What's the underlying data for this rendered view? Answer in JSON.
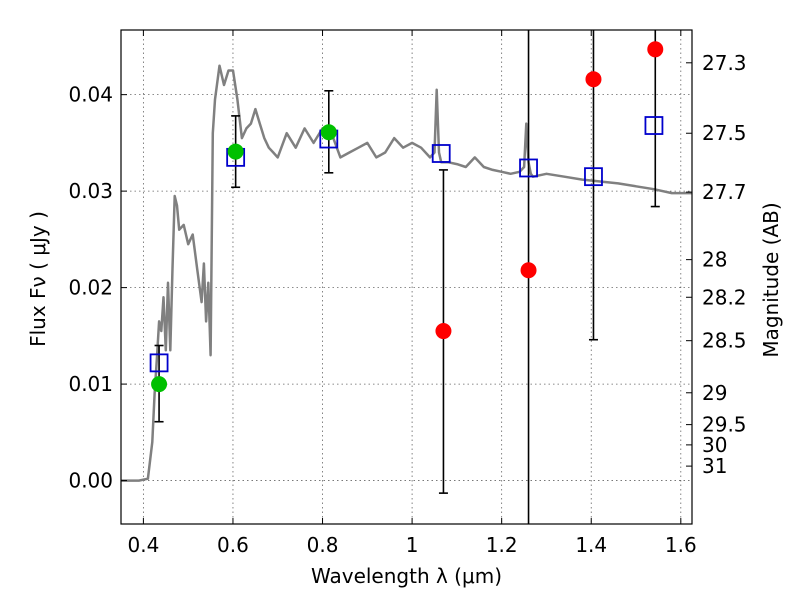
{
  "chart_data": {
    "type": "scatter",
    "title": "",
    "xlabel": "Wavelength  λ (μm)",
    "ylabel": "Flux  Fν  ( μJy )",
    "ylabel_right": "Magnitude (AB)",
    "xlim": [
      0.35,
      1.625
    ],
    "ylim": [
      -0.0045,
      0.0467
    ],
    "grid": true,
    "legend": "none",
    "x_ticks": [
      0.4,
      0.6,
      0.8,
      1.0,
      1.2,
      1.4,
      1.6
    ],
    "x_tick_labels": [
      "0.4",
      "0.6",
      "0.8",
      "1",
      "1.2",
      "1.4",
      "1.6"
    ],
    "y_ticks": [
      0.0,
      0.01,
      0.02,
      0.03,
      0.04
    ],
    "y_tick_labels": [
      "0.00",
      "0.01",
      "0.02",
      "0.03",
      "0.04"
    ],
    "mag_ticks": [
      {
        "flux": 0.0433,
        "label": "27.3"
      },
      {
        "flux": 0.036,
        "label": "27.5"
      },
      {
        "flux": 0.0299,
        "label": "27.7"
      },
      {
        "flux": 0.0229,
        "label": "28"
      },
      {
        "flux": 0.019,
        "label": "28.2"
      },
      {
        "flux": 0.0145,
        "label": "28.5"
      },
      {
        "flux": 0.0091,
        "label": "29"
      },
      {
        "flux": 0.0058,
        "label": "29.5"
      },
      {
        "flux": 0.0037,
        "label": "30"
      },
      {
        "flux": 0.0015,
        "label": "31"
      }
    ],
    "colors": {
      "model": "#808080",
      "detected": "#00c000",
      "undetected": "#ff0000",
      "model_phot": "#0000cc",
      "errorbar": "#000000"
    },
    "series": [
      {
        "kind": "model_spectrum",
        "x": [
          0.35,
          0.37,
          0.39,
          0.41,
          0.42,
          0.425,
          0.43,
          0.435,
          0.44,
          0.445,
          0.45,
          0.455,
          0.46,
          0.465,
          0.47,
          0.475,
          0.48,
          0.49,
          0.5,
          0.51,
          0.52,
          0.53,
          0.535,
          0.54,
          0.545,
          0.55,
          0.555,
          0.56,
          0.57,
          0.58,
          0.59,
          0.6,
          0.61,
          0.62,
          0.63,
          0.64,
          0.65,
          0.66,
          0.67,
          0.68,
          0.69,
          0.7,
          0.72,
          0.74,
          0.76,
          0.78,
          0.8,
          0.82,
          0.84,
          0.86,
          0.88,
          0.9,
          0.92,
          0.94,
          0.96,
          0.98,
          1.0,
          1.02,
          1.04,
          1.05,
          1.055,
          1.06,
          1.065,
          1.08,
          1.1,
          1.12,
          1.14,
          1.16,
          1.18,
          1.2,
          1.22,
          1.24,
          1.25,
          1.255,
          1.26,
          1.265,
          1.27,
          1.3,
          1.34,
          1.38,
          1.42,
          1.46,
          1.5,
          1.54,
          1.58,
          1.625
        ],
        "y": [
          0.0,
          0.0,
          0.0,
          0.0002,
          0.004,
          0.009,
          0.0125,
          0.0165,
          0.0155,
          0.019,
          0.0135,
          0.0205,
          0.0135,
          0.022,
          0.0295,
          0.0285,
          0.026,
          0.0265,
          0.0245,
          0.0255,
          0.022,
          0.0185,
          0.0225,
          0.0165,
          0.0205,
          0.013,
          0.036,
          0.0395,
          0.043,
          0.041,
          0.0425,
          0.0425,
          0.0395,
          0.0355,
          0.0365,
          0.037,
          0.0385,
          0.037,
          0.0355,
          0.0345,
          0.034,
          0.0335,
          0.036,
          0.0345,
          0.0365,
          0.035,
          0.0365,
          0.036,
          0.0335,
          0.034,
          0.0345,
          0.035,
          0.0335,
          0.034,
          0.0355,
          0.0345,
          0.035,
          0.0345,
          0.0335,
          0.034,
          0.0405,
          0.034,
          0.033,
          0.033,
          0.0328,
          0.0325,
          0.0335,
          0.0325,
          0.0322,
          0.032,
          0.0318,
          0.032,
          0.0325,
          0.037,
          0.033,
          0.0318,
          0.0315,
          0.0318,
          0.0315,
          0.0312,
          0.031,
          0.0308,
          0.0305,
          0.0302,
          0.0298,
          0.0298
        ]
      },
      {
        "kind": "model_photometry",
        "marker": "open-square",
        "x": [
          0.435,
          0.606,
          0.814,
          1.065,
          1.26,
          1.405,
          1.54
        ],
        "y": [
          0.0122,
          0.0335,
          0.0354,
          0.0339,
          0.0324,
          0.0315,
          0.0368
        ]
      },
      {
        "kind": "observed_detected",
        "marker": "filled-circle",
        "x": [
          0.435,
          0.606,
          0.814
        ],
        "y": [
          0.01,
          0.0341,
          0.0361
        ],
        "yerr_low": [
          0.0061,
          0.0304,
          0.0319
        ],
        "yerr_high": [
          0.014,
          0.0378,
          0.0404
        ]
      },
      {
        "kind": "observed_undetected",
        "marker": "filled-circle",
        "x": [
          1.07,
          1.26,
          1.405,
          1.543
        ],
        "y": [
          0.0155,
          0.0218,
          0.0416,
          0.0447
        ],
        "yerr_low": [
          -0.0013,
          -0.0045,
          0.0146,
          0.0284
        ],
        "yerr_high": [
          0.0322,
          0.0467,
          0.0467,
          0.0467
        ]
      }
    ]
  }
}
